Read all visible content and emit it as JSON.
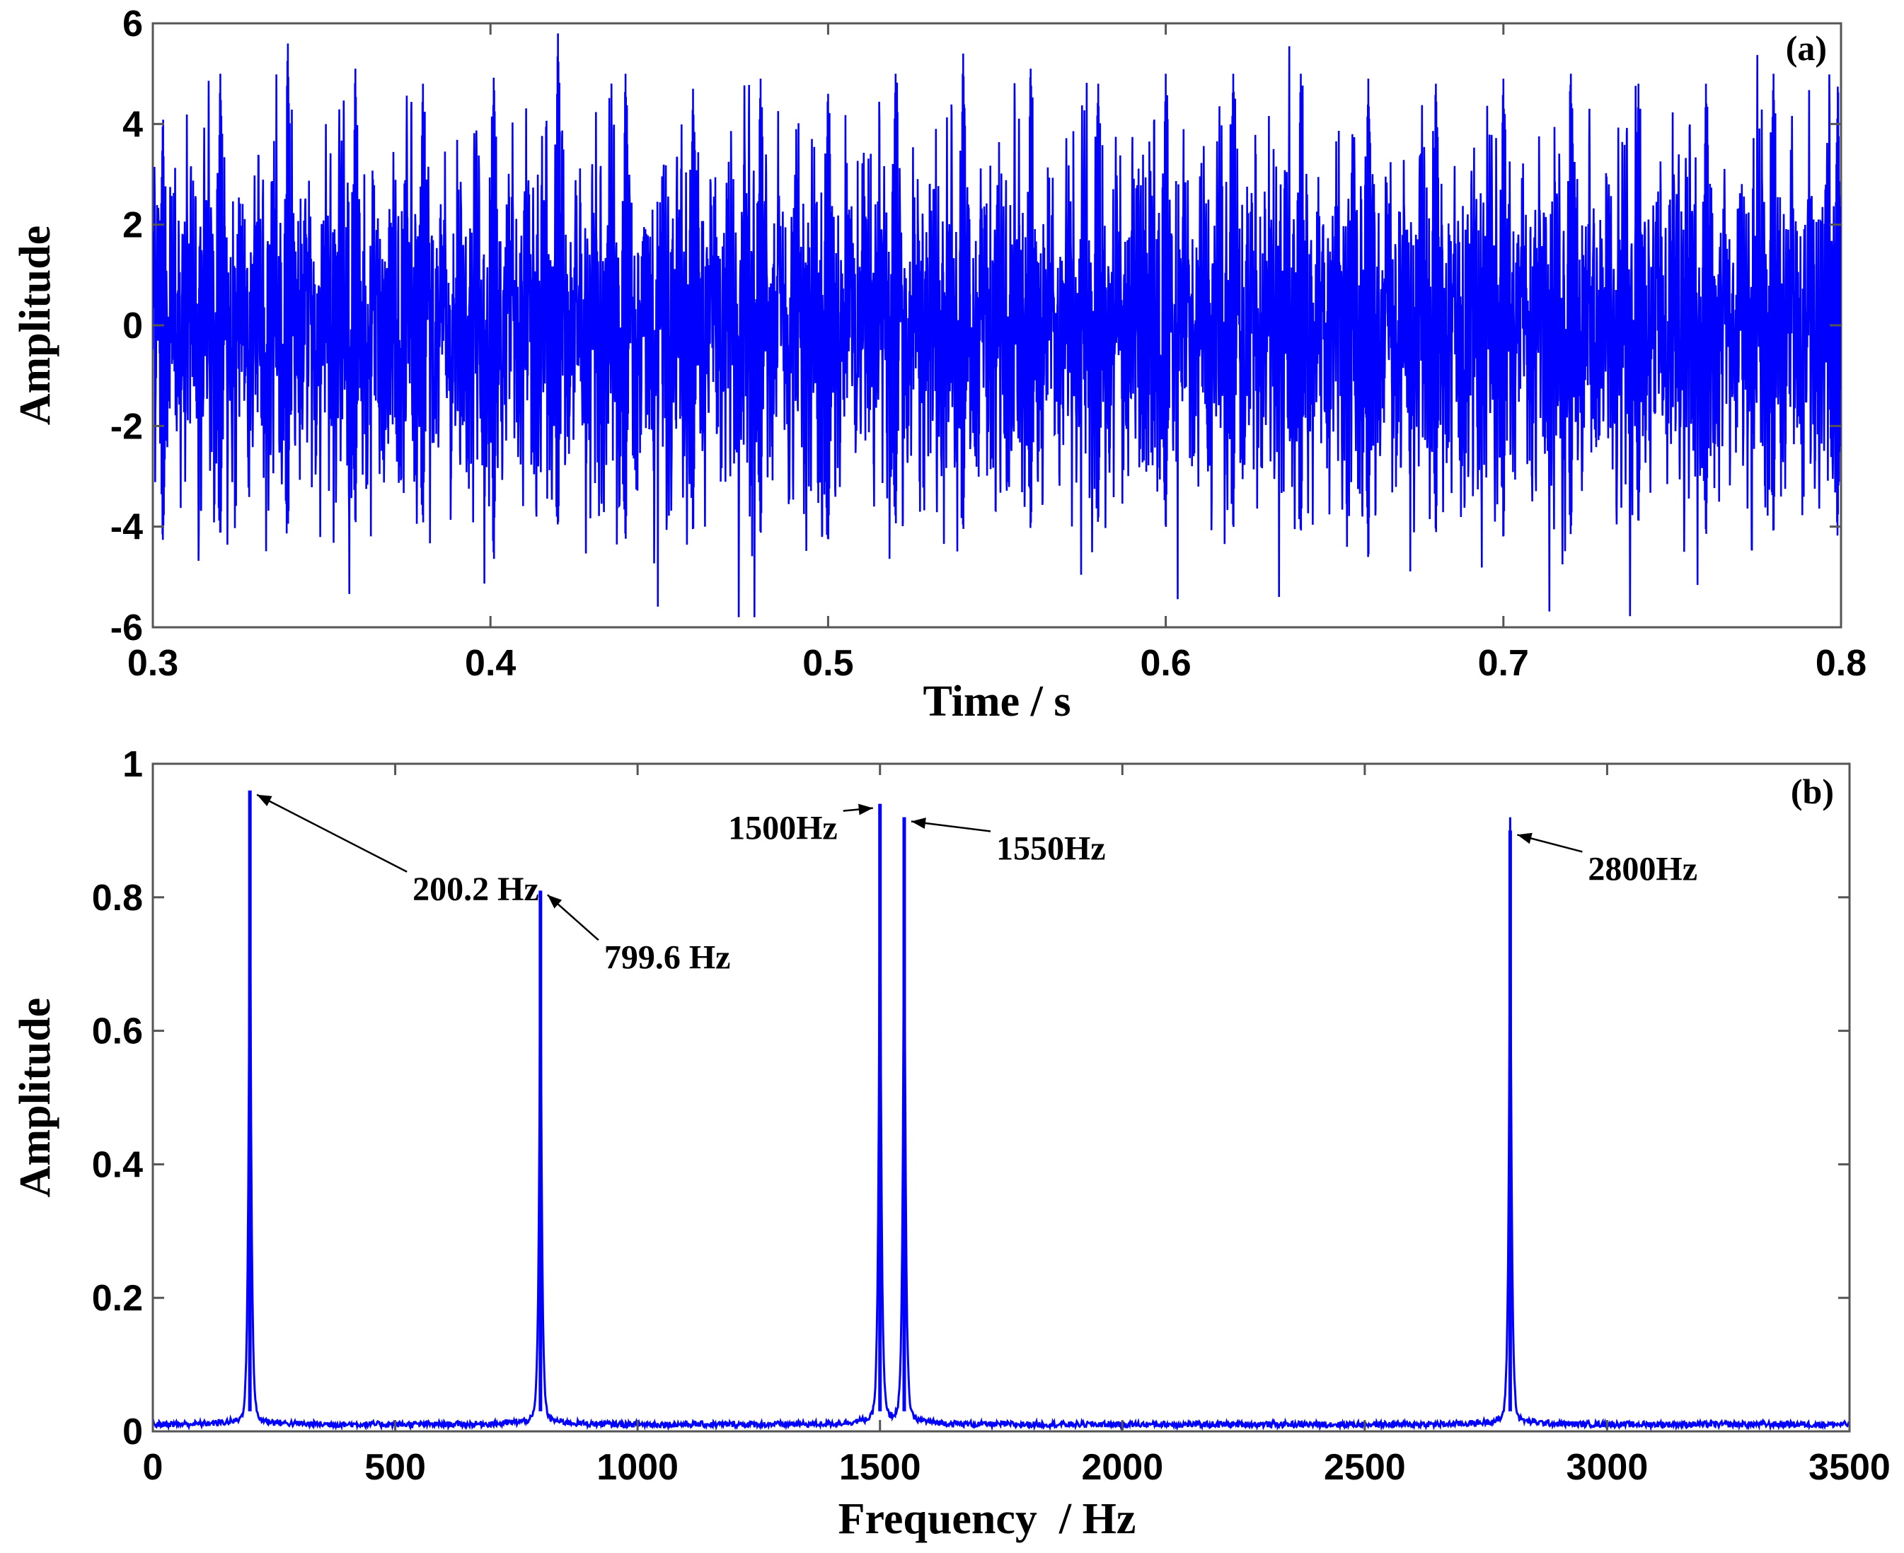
{
  "chart_data": [
    {
      "type": "line",
      "panel_label": "(a)",
      "xlabel": "Time / s",
      "ylabel": "Amplitude",
      "xlim": [
        0.3,
        0.8
      ],
      "ylim": [
        -6,
        6
      ],
      "xticks": [
        0.3,
        0.4,
        0.5,
        0.6,
        0.7,
        0.8
      ],
      "xtick_labels": [
        "0.3",
        "0.4",
        "0.5",
        "0.6",
        "0.7",
        "0.8"
      ],
      "yticks": [
        -6,
        -4,
        -2,
        0,
        2,
        4,
        6
      ],
      "ytick_labels": [
        "-6",
        "-4",
        "-2",
        "0",
        "2",
        "4",
        "6"
      ],
      "grid": false,
      "series": [
        {
          "color": "#0000ff",
          "signal_components_hz": [
            200.2,
            799.6,
            1500,
            1550,
            2800
          ],
          "peak_envelope": {
            "t": [
              0.303,
              0.32,
              0.34,
              0.36,
              0.38,
              0.401,
              0.42,
              0.44,
              0.46,
              0.48,
              0.5,
              0.52,
              0.54,
              0.56,
              0.58,
              0.6,
              0.62,
              0.64,
              0.66,
              0.68,
              0.7,
              0.72,
              0.74,
              0.76,
              0.78,
              0.799
            ],
            "max": [
              4.3,
              5.0,
              5.6,
              5.1,
              4.8,
              5.0,
              5.8,
              5.0,
              4.7,
              4.9,
              4.6,
              5.0,
              5.4,
              5.1,
              4.8,
              5.0,
              5.0,
              5.0,
              4.9,
              4.8,
              4.9,
              5.0,
              4.8,
              4.8,
              5.0,
              4.8
            ],
            "min": [
              -4.3,
              -4.4,
              -4.2,
              -4.2,
              -4.1,
              -4.8,
              -4.2,
              -4.5,
              -4.3,
              -4.4,
              -4.6,
              -4.1,
              -4.2,
              -4.3,
              -4.1,
              -4.3,
              -4.3,
              -4.3,
              -4.9,
              -4.3,
              -4.4,
              -4.3,
              -4.1,
              -4.3,
              -4.3,
              -4.3
            ]
          }
        }
      ]
    },
    {
      "type": "line",
      "panel_label": "(b)",
      "xlabel": "Frequency  / Hz",
      "ylabel": "Amplitude",
      "xlim": [
        0,
        3500
      ],
      "ylim": [
        0,
        1
      ],
      "xticks": [
        0,
        500,
        1000,
        1500,
        2000,
        2500,
        3000,
        3500
      ],
      "xtick_labels": [
        "0",
        "500",
        "1000",
        "1500",
        "2000",
        "2500",
        "3000",
        "3500"
      ],
      "yticks": [
        0,
        0.2,
        0.4,
        0.6,
        0.8,
        1
      ],
      "ytick_labels": [
        "0",
        "0.2",
        "0.4",
        "0.6",
        "0.8",
        "1"
      ],
      "grid": false,
      "noise_floor": 0.01,
      "series": [
        {
          "color": "#0000ff",
          "peaks": [
            {
              "x": 200.2,
              "y": 0.96
            },
            {
              "x": 799.6,
              "y": 0.81
            },
            {
              "x": 1500,
              "y": 0.94
            },
            {
              "x": 1550,
              "y": 0.92
            },
            {
              "x": 2800,
              "y": 0.9
            }
          ]
        }
      ],
      "annotations": [
        {
          "text": "200.2 Hz",
          "x": 200.2,
          "y": 0.96,
          "side": "right"
        },
        {
          "text": "799.6 Hz",
          "x": 799.6,
          "y": 0.81,
          "side": "right"
        },
        {
          "text": "1500Hz",
          "x": 1500,
          "y": 0.94,
          "side": "left"
        },
        {
          "text": "1550Hz",
          "x": 1550,
          "y": 0.92,
          "side": "right"
        },
        {
          "text": "2800Hz",
          "x": 2800,
          "y": 0.9,
          "side": "right"
        }
      ]
    }
  ]
}
